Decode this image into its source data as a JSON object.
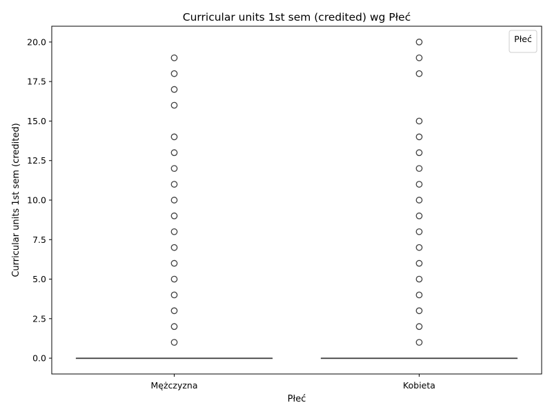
{
  "chart_data": {
    "type": "box",
    "title": "Curricular units 1st sem (credited) wg Płeć",
    "xlabel": "Płeć",
    "ylabel": "Curricular units 1st sem (credited)",
    "categories": [
      "Mężczyzna",
      "Kobieta"
    ],
    "ylim": [
      -1,
      21
    ],
    "yticks": [
      0.0,
      2.5,
      5.0,
      7.5,
      10.0,
      12.5,
      15.0,
      17.5,
      20.0
    ],
    "ytick_labels": [
      "0.0",
      "2.5",
      "5.0",
      "7.5",
      "10.0",
      "12.5",
      "15.0",
      "17.5",
      "20.0"
    ],
    "legend": {
      "title": "Płeć",
      "placement": "top-right"
    },
    "grid": false,
    "series": [
      {
        "category": "Mężczyzna",
        "min": 0,
        "q1": 0,
        "median": 0,
        "q3": 0,
        "max": 0,
        "outliers": [
          1,
          2,
          3,
          4,
          5,
          6,
          7,
          8,
          9,
          10,
          11,
          12,
          13,
          14,
          16,
          17,
          18,
          19
        ]
      },
      {
        "category": "Kobieta",
        "min": 0,
        "q1": 0,
        "median": 0,
        "q3": 0,
        "max": 0,
        "outliers": [
          1,
          2,
          3,
          4,
          5,
          6,
          7,
          8,
          9,
          10,
          11,
          12,
          13,
          14,
          15,
          18,
          19,
          20
        ]
      }
    ],
    "colors": {
      "line": "#3f3f3f",
      "marker_edge": "#3f3f3f",
      "axes": "#000000"
    }
  }
}
